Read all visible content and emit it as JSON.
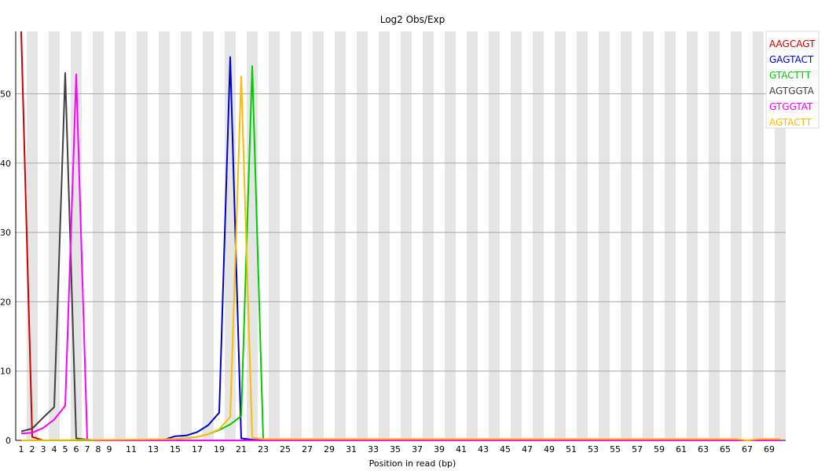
{
  "chart_data": {
    "type": "line",
    "title": "Log2 Obs/Exp",
    "xlabel": "Position in read (bp)",
    "ylabel": "",
    "x_ticks": [
      1,
      2,
      3,
      4,
      5,
      6,
      7,
      8,
      9,
      11,
      13,
      15,
      17,
      19,
      21,
      23,
      25,
      27,
      29,
      31,
      33,
      35,
      37,
      39,
      41,
      43,
      45,
      47,
      49,
      51,
      53,
      55,
      57,
      59,
      61,
      63,
      65,
      67,
      69
    ],
    "y_ticks": [
      0,
      10,
      20,
      30,
      40,
      50
    ],
    "xlim": [
      1,
      70
    ],
    "ylim": [
      0,
      59
    ],
    "grid": "horizontal",
    "legend_position": "top-right",
    "series": [
      {
        "name": "AAGCAGT",
        "color": "#cc0000",
        "points": [
          [
            1,
            59
          ],
          [
            2,
            0.5
          ],
          [
            3,
            0
          ],
          [
            4,
            0
          ],
          [
            5,
            0
          ],
          [
            6,
            0
          ],
          [
            7,
            0
          ],
          [
            8,
            0
          ],
          [
            10,
            0
          ],
          [
            15,
            0
          ],
          [
            20,
            0
          ],
          [
            30,
            0
          ],
          [
            40,
            0
          ],
          [
            50,
            0
          ],
          [
            60,
            0
          ],
          [
            70,
            0
          ]
        ]
      },
      {
        "name": "GAGTACT",
        "color": "#0000cc",
        "points": [
          [
            1,
            0
          ],
          [
            5,
            0
          ],
          [
            10,
            0
          ],
          [
            13,
            0
          ],
          [
            14,
            0.1
          ],
          [
            15,
            0.6
          ],
          [
            16,
            0.7
          ],
          [
            17,
            1.2
          ],
          [
            18,
            2.2
          ],
          [
            19,
            4
          ],
          [
            20,
            55.3
          ],
          [
            21,
            0.3
          ],
          [
            22,
            0.1
          ],
          [
            23,
            0
          ],
          [
            30,
            0
          ],
          [
            40,
            0
          ],
          [
            50,
            0
          ],
          [
            60,
            0
          ],
          [
            70,
            0
          ]
        ]
      },
      {
        "name": "GTACTTT",
        "color": "#00cc00",
        "points": [
          [
            1,
            0
          ],
          [
            10,
            0
          ],
          [
            15,
            0.2
          ],
          [
            16,
            0.3
          ],
          [
            17,
            0.5
          ],
          [
            18,
            0.9
          ],
          [
            19,
            1.5
          ],
          [
            20,
            2.3
          ],
          [
            21,
            3.5
          ],
          [
            22,
            54
          ],
          [
            23,
            0.2
          ],
          [
            24,
            0.1
          ],
          [
            30,
            0
          ],
          [
            40,
            0
          ],
          [
            50,
            0
          ],
          [
            60,
            0
          ],
          [
            70,
            0
          ]
        ]
      },
      {
        "name": "AGTGGTA",
        "color": "#404040",
        "points": [
          [
            1,
            1.3
          ],
          [
            2,
            1.7
          ],
          [
            3,
            3.3
          ],
          [
            4,
            4.8
          ],
          [
            5,
            53
          ],
          [
            6,
            0.3
          ],
          [
            7,
            0.1
          ],
          [
            8,
            0
          ],
          [
            10,
            0
          ],
          [
            20,
            0
          ],
          [
            30,
            0
          ],
          [
            40,
            0
          ],
          [
            50,
            0
          ],
          [
            60,
            0
          ],
          [
            70,
            0
          ]
        ]
      },
      {
        "name": "GTGGTAT",
        "color": "#ff00ff",
        "points": [
          [
            1,
            1
          ],
          [
            2,
            1.1
          ],
          [
            3,
            1.8
          ],
          [
            4,
            3
          ],
          [
            5,
            5
          ],
          [
            6,
            52.8
          ],
          [
            7,
            0.1
          ],
          [
            8,
            0
          ],
          [
            10,
            0
          ],
          [
            20,
            0
          ],
          [
            30,
            0
          ],
          [
            40,
            0
          ],
          [
            50,
            0
          ],
          [
            60,
            0
          ],
          [
            70,
            0
          ]
        ]
      },
      {
        "name": "AGTACTT",
        "color": "#ffbb00",
        "points": [
          [
            1,
            0
          ],
          [
            10,
            0.1
          ],
          [
            15,
            0.2
          ],
          [
            16,
            0.3
          ],
          [
            17,
            0.5
          ],
          [
            18,
            0.9
          ],
          [
            19,
            1.6
          ],
          [
            20,
            3.4
          ],
          [
            21,
            52.5
          ],
          [
            22,
            0.4
          ],
          [
            23,
            0.2
          ],
          [
            30,
            0.2
          ],
          [
            40,
            0.2
          ],
          [
            50,
            0.2
          ],
          [
            60,
            0.2
          ],
          [
            66,
            0.2
          ],
          [
            67,
            0
          ],
          [
            68,
            0.2
          ],
          [
            70,
            0.2
          ]
        ]
      }
    ]
  }
}
